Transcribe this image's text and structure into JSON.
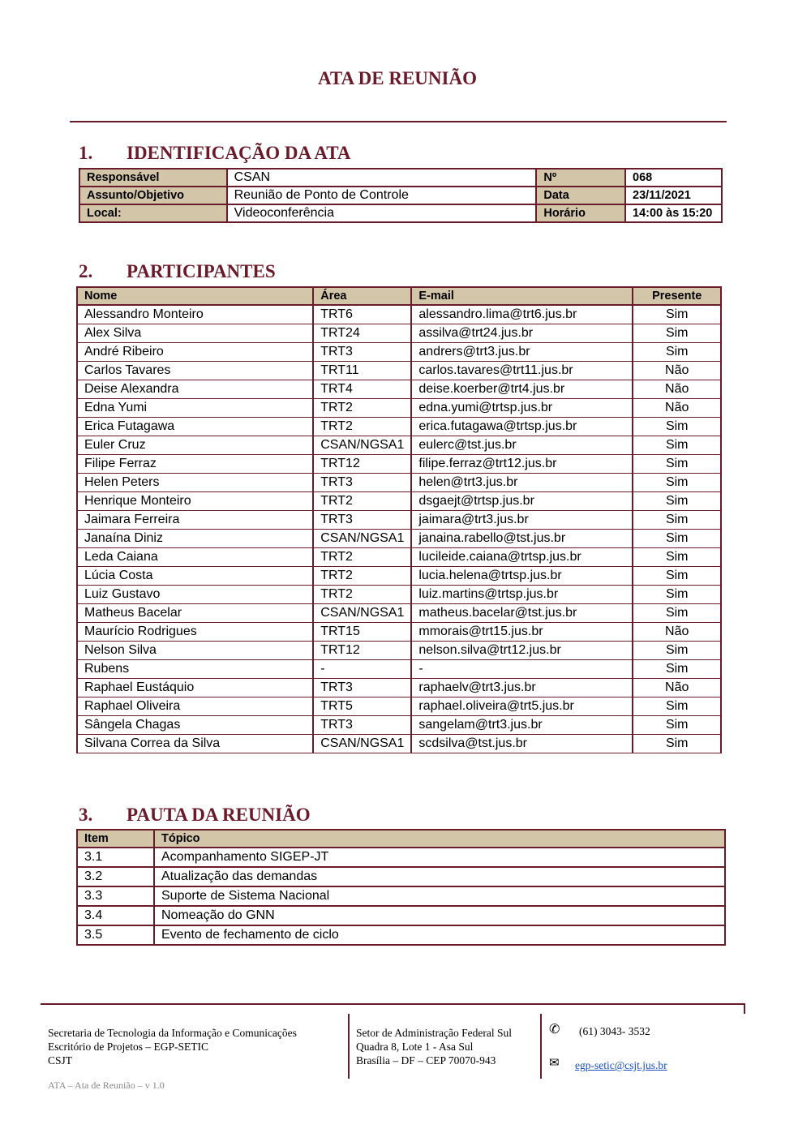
{
  "title": "ATA DE REUNIÃO",
  "sections": [
    {
      "num": "1.",
      "title": "IDENTIFICAÇÃO DA ATA"
    },
    {
      "num": "2.",
      "title": "PARTICIPANTES"
    },
    {
      "num": "3.",
      "title": "PAUTA DA REUNIÃO"
    }
  ],
  "identification": {
    "responsavel_label": "Responsável",
    "responsavel": "CSAN",
    "numero_label": "Nº",
    "numero": "068",
    "assunto_label": "Assunto/Objetivo",
    "assunto": "Reunião de Ponto de Controle",
    "data_label": "Data",
    "data": "23/11/2021",
    "local_label": "Local:",
    "local": "Videoconferência",
    "horario_label": "Horário",
    "horario": "14:00 às 15:20"
  },
  "participants": {
    "headers": [
      "Nome",
      "Área",
      "E-mail",
      "Presente"
    ],
    "rows": [
      [
        "Alessandro Monteiro",
        "TRT6",
        "alessandro.lima@trt6.jus.br",
        "Sim"
      ],
      [
        "Alex Silva",
        "TRT24",
        "assilva@trt24.jus.br",
        "Sim"
      ],
      [
        "André Ribeiro",
        "TRT3",
        "andrers@trt3.jus.br",
        "Sim"
      ],
      [
        "Carlos Tavares",
        "TRT11",
        "carlos.tavares@trt11.jus.br",
        "Não"
      ],
      [
        "Deise Alexandra",
        "TRT4",
        "deise.koerber@trt4.jus.br",
        "Não"
      ],
      [
        "Edna Yumi",
        "TRT2",
        "edna.yumi@trtsp.jus.br",
        "Não"
      ],
      [
        "Erica Futagawa",
        "TRT2",
        "erica.futagawa@trtsp.jus.br",
        "Sim"
      ],
      [
        "Euler Cruz",
        "CSAN/NGSA1",
        "eulerc@tst.jus.br",
        "Sim"
      ],
      [
        "Filipe Ferraz",
        "TRT12",
        "filipe.ferraz@trt12.jus.br",
        "Sim"
      ],
      [
        "Helen Peters",
        "TRT3",
        "helen@trt3.jus.br",
        "Sim"
      ],
      [
        "Henrique Monteiro",
        "TRT2",
        "dsgaejt@trtsp.jus.br",
        "Sim"
      ],
      [
        "Jaimara Ferreira",
        "TRT3",
        "jaimara@trt3.jus.br",
        "Sim"
      ],
      [
        "Janaína Diniz",
        "CSAN/NGSA1",
        "janaina.rabello@tst.jus.br",
        "Sim"
      ],
      [
        "Leda Caiana",
        "TRT2",
        "lucileide.caiana@trtsp.jus.br",
        "Sim"
      ],
      [
        "Lúcia Costa",
        "TRT2",
        "lucia.helena@trtsp.jus.br",
        "Sim"
      ],
      [
        "Luiz Gustavo",
        "TRT2",
        "luiz.martins@trtsp.jus.br",
        "Sim"
      ],
      [
        "Matheus Bacelar",
        "CSAN/NGSA1",
        "matheus.bacelar@tst.jus.br",
        "Sim"
      ],
      [
        "Maurício Rodrigues",
        "TRT15",
        "mmorais@trt15.jus.br",
        "Não"
      ],
      [
        "Nelson Silva",
        "TRT12",
        "nelson.silva@trt12.jus.br",
        "Sim"
      ],
      [
        "Rubens",
        "-",
        "-",
        "Sim"
      ],
      [
        "Raphael Eustáquio",
        "TRT3",
        "raphaelv@trt3.jus.br",
        "Não"
      ],
      [
        "Raphael Oliveira",
        "TRT5",
        "raphael.oliveira@trt5.jus.br",
        "Sim"
      ],
      [
        "Sângela Chagas",
        "TRT3",
        "sangelam@trt3.jus.br",
        "Sim"
      ],
      [
        "Silvana Correa da Silva",
        "CSAN/NGSA1",
        "scdsilva@tst.jus.br",
        "Sim"
      ]
    ]
  },
  "agenda": {
    "headers": [
      "Item",
      "Tópico"
    ],
    "rows": [
      [
        "3.1",
        "Acompanhamento SIGEP-JT"
      ],
      [
        "3.2",
        "Atualização das demandas"
      ],
      [
        "3.3",
        "Suporte de Sistema Nacional"
      ],
      [
        "3.4",
        "Nomeação do GNN"
      ],
      [
        "3.5",
        "Evento de fechamento de ciclo"
      ]
    ]
  },
  "footer": {
    "org": [
      "Secretaria de Tecnologia da Informação e Comunicações",
      "Escritório de Projetos – EGP-SETIC",
      "CSJT"
    ],
    "address": [
      "Setor de Administração Federal Sul",
      "Quadra 8, Lote 1 - Asa Sul",
      "Brasília – DF – CEP 70070-943"
    ],
    "phone": "(61) 3043- 3532",
    "email": "egp-setic@csjt.jus.br",
    "version": "ATA – Ata de Reunião – v 1.0"
  },
  "colors": {
    "accent": "#6b1a2a",
    "header_fill": "#d2c5a8",
    "link": "#1a4fc4"
  }
}
